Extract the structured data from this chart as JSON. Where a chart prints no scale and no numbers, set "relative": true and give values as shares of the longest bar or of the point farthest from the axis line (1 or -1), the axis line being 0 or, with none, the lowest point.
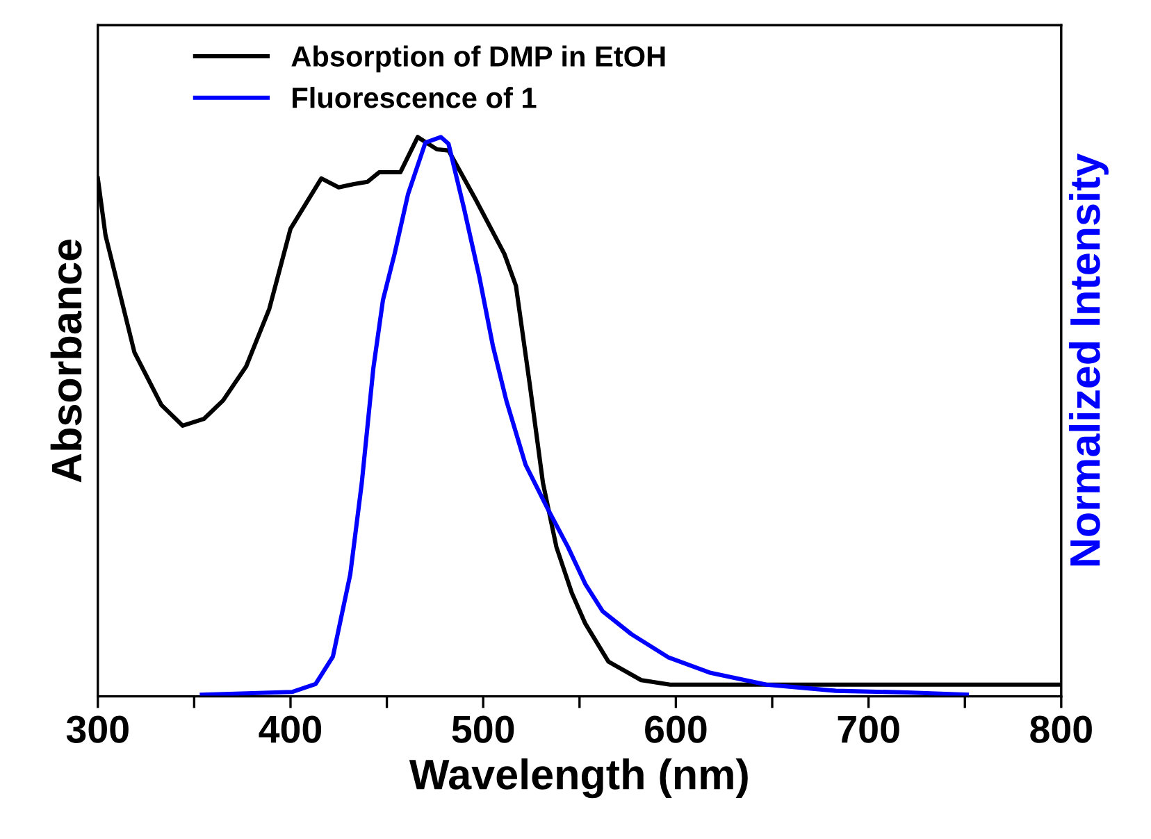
{
  "chart_data": {
    "type": "line",
    "relative": true,
    "xlabel": "Wavelength (nm)",
    "ylabel": "Absorbance",
    "y2label": "Normalized Intensity",
    "xlim": [
      300,
      800
    ],
    "xticks": [
      300,
      {
        "value": 350,
        "label": null
      },
      400,
      {
        "value": 450,
        "label": null
      },
      500,
      {
        "value": 550,
        "label": null
      },
      600,
      {
        "value": 650,
        "label": null
      },
      700,
      {
        "value": 750,
        "label": null
      },
      800
    ],
    "tick_labels": "x",
    "legend": "top left",
    "grid": false,
    "line_style": "solid",
    "marker": "none",
    "series": [
      {
        "name": "Absorption of DMP in EtOH",
        "color": "#000000",
        "x": [
          300,
          304,
          319,
          333,
          344,
          355,
          365,
          377,
          389,
          400,
          416,
          425,
          433,
          440,
          446,
          457,
          466,
          476,
          482,
          496,
          511,
          517,
          524,
          531,
          538,
          546,
          553,
          565,
          582,
          597,
          700,
          800
        ],
        "values": [
          0.926,
          0.824,
          0.615,
          0.521,
          0.484,
          0.496,
          0.529,
          0.59,
          0.693,
          0.836,
          0.926,
          0.91,
          0.916,
          0.92,
          0.937,
          0.937,
          1.0,
          0.978,
          0.976,
          0.889,
          0.791,
          0.734,
          0.562,
          0.382,
          0.267,
          0.185,
          0.13,
          0.062,
          0.029,
          0.021,
          0.021,
          0.021
        ]
      },
      {
        "name": "Fluorescence of 1",
        "color": "#0000ff",
        "axis": "y2",
        "x": [
          354,
          401,
          413,
          422,
          431,
          437,
          443,
          448,
          454,
          461,
          470,
          478,
          482,
          490,
          498,
          505,
          512,
          522,
          534,
          544,
          553,
          562,
          577,
          596,
          618,
          647,
          683,
          720,
          751
        ],
        "values": [
          0.003,
          0.008,
          0.022,
          0.071,
          0.218,
          0.382,
          0.587,
          0.709,
          0.791,
          0.898,
          0.99,
          1.0,
          0.988,
          0.873,
          0.75,
          0.627,
          0.529,
          0.414,
          0.332,
          0.267,
          0.201,
          0.152,
          0.111,
          0.07,
          0.042,
          0.021,
          0.01,
          0.007,
          0.003
        ]
      }
    ]
  }
}
